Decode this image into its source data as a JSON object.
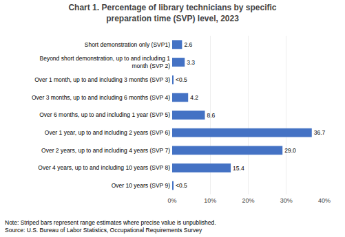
{
  "chart_data": {
    "type": "bar",
    "orientation": "horizontal",
    "title": "Chart 1. Percentage of library technicians by specific\npreparation time (SVP) level, 2023",
    "categories": [
      "Short demonstration only (SVP1)",
      "Beyond short demonstration, up to and including 1\nmonth (SVP 2)",
      "Over 1 month, up to and including 3 months (SVP 3)",
      "Over 3 months, up to and including 6 months (SVP 4)",
      "Over 6 months, up to and including 1 year (SVP 5)",
      "Over 1 year, up to and including 2 years (SVP 6)",
      "Over 2 years, up to and including 4 years (SVP 7)",
      "Over 4 years, up to and including 10 years (SVP 8)",
      "Over 10 years (SVP 9)"
    ],
    "values": [
      2.6,
      3.3,
      0.3,
      4.2,
      8.6,
      36.7,
      29.0,
      15.4,
      0.3
    ],
    "value_labels": [
      "2.6",
      "3.3",
      "<0.5",
      "4.2",
      "8.6",
      "36.7",
      "29.0",
      "15.4",
      "<0.5"
    ],
    "data_labels": true,
    "color": "#4472C4",
    "xlim": [
      0,
      40
    ],
    "xticks": [
      {
        "value": 0,
        "label": "0%"
      },
      {
        "value": 10,
        "label": "10%"
      },
      {
        "value": 20,
        "label": "20%"
      },
      {
        "value": 30,
        "label": "30%"
      },
      {
        "value": 40,
        "label": "40%"
      }
    ],
    "grid": true,
    "annotations": [
      "Note: Striped bars represent range estimates where precise value is unpublished.\nSource: U.S. Bureau of Labor Statistics, Occupational Requirements Survey"
    ]
  }
}
